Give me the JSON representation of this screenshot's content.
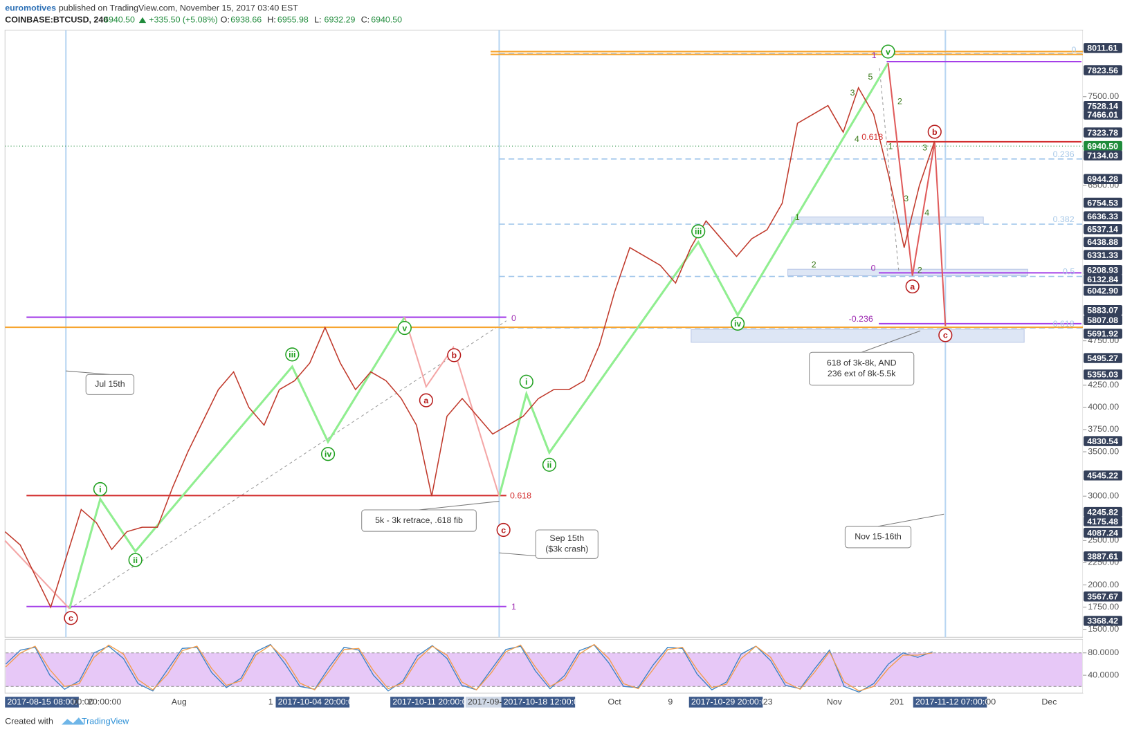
{
  "header": {
    "author": "euromotives",
    "published": "published on TradingView.com, November 15, 2017 03:40 EST",
    "symbol": "COINBASE:BTCUSD, 240",
    "last": "6940.50",
    "change": "+335.50 (+5.08%)",
    "ohlc": [
      {
        "label": "O:",
        "value": "6938.66"
      },
      {
        "label": "H:",
        "value": "6955.98"
      },
      {
        "label": "L:",
        "value": "6932.29"
      },
      {
        "label": "C:",
        "value": "6940.50"
      }
    ]
  },
  "chart_data": {
    "type": "line",
    "color": "#c0392b",
    "values": [
      2600,
      2450,
      2100,
      1750,
      2300,
      2850,
      2700,
      2400,
      2600,
      2650,
      2650,
      3100,
      3500,
      3850,
      4200,
      4400,
      4000,
      3800,
      4200,
      4300,
      4500,
      4900,
      4500,
      4200,
      4400,
      4300,
      4100,
      3800,
      3000,
      3900,
      4100,
      3900,
      3700,
      3800,
      3900,
      4100,
      4200,
      4200,
      4300,
      4700,
      5300,
      5800,
      5700,
      5600,
      5400,
      5800,
      6100,
      5900,
      5700,
      5900,
      6000,
      6300,
      7200,
      7300,
      7400,
      7100,
      7600,
      7300,
      6600,
      5800,
      6500,
      7000
    ],
    "ylim": [
      1410,
      8250
    ],
    "yticks": [
      {
        "value": 7500,
        "label": "7500.00"
      },
      {
        "value": 6500,
        "label": "6500.00"
      },
      {
        "value": 4750,
        "label": "4750.00"
      },
      {
        "value": 4250,
        "label": "4250.00"
      },
      {
        "value": 4000,
        "label": "4000.00"
      },
      {
        "value": 3750,
        "label": "3750.00"
      },
      {
        "value": 3500,
        "label": "3500.00"
      },
      {
        "value": 3000,
        "label": "3000.00"
      },
      {
        "value": 2500,
        "label": "2500.00"
      },
      {
        "value": 2250,
        "label": "2250.00"
      },
      {
        "value": 2000,
        "label": "2000.00"
      },
      {
        "value": 1750,
        "label": "1750.00"
      },
      {
        "value": 1500,
        "label": "1500.00"
      }
    ],
    "price_labels": [
      "8011.61",
      "7823.56",
      "7528.14",
      "7466.01",
      "7323.78",
      "6940.50",
      "7134.03",
      "6944.28",
      "6754.53",
      "6636.33",
      "6537.14",
      "6438.88",
      "6331.33",
      "6208.93",
      "6132.84",
      "6042.90",
      "5883.07",
      "5807.08",
      "5691.92",
      "5495.27",
      "5355.03",
      "4830.54",
      "4545.22",
      "4245.82",
      "4175.48",
      "4087.24",
      "3887.61",
      "3567.67",
      "3368.42"
    ],
    "label_color": "#34405a",
    "last_price_color": "#1f8b3b"
  },
  "oscillator": {
    "type": "line",
    "series": [
      {
        "color": "#3b82c4",
        "values": [
          60,
          85,
          90,
          40,
          15,
          30,
          80,
          92,
          70,
          25,
          12,
          50,
          88,
          90,
          45,
          18,
          35,
          82,
          95,
          60,
          20,
          15,
          55,
          90,
          85,
          40,
          12,
          30,
          75,
          93,
          70,
          22,
          14,
          50,
          86,
          92,
          48,
          16,
          40,
          84,
          94,
          62,
          20,
          18,
          58,
          90,
          88,
          42,
          14,
          28,
          78,
          92,
          66,
          22,
          16,
          52,
          85,
          20,
          10,
          25,
          60,
          80,
          72,
          82
        ]
      },
      {
        "color": "#f39c4a",
        "values": [
          55,
          80,
          92,
          50,
          20,
          25,
          72,
          94,
          78,
          32,
          14,
          42,
          84,
          92,
          52,
          22,
          30,
          76,
          94,
          68,
          26,
          14,
          48,
          86,
          88,
          48,
          16,
          26,
          68,
          92,
          76,
          28,
          14,
          44,
          82,
          94,
          55,
          20,
          34,
          78,
          95,
          70,
          25,
          16,
          50,
          86,
          90,
          50,
          18,
          24,
          70,
          92,
          72,
          28,
          15,
          46,
          82,
          28,
          12,
          20,
          52,
          76,
          76,
          80
        ]
      }
    ],
    "ylim": [
      8,
      104
    ],
    "yticks": [
      {
        "value": 80,
        "label": "80.0000"
      },
      {
        "value": 40,
        "label": "40.0000"
      }
    ],
    "bands": [
      20,
      80
    ],
    "band_color": "#e7c8f7"
  },
  "time_labels": [
    "2017-08-15 08:00:00",
    "00:00",
    "20:00:00",
    "Aug",
    "1",
    "2017-10-04 20:00:00",
    "2017-10-11 20:00:00",
    "2017-09-14",
    "2017-10-18 12:00:00",
    "Oct",
    "9",
    "2017-10-29 20:00:00",
    "23",
    "Nov",
    "201",
    "2017-11-12 07:00:00",
    ":00",
    "Dec"
  ],
  "green_waves": [
    "i",
    "ii",
    "iii",
    "iv",
    "v",
    "i",
    "ii",
    "iii",
    "iv",
    "v"
  ],
  "red_waves": [
    "c",
    "a",
    "b",
    "c",
    "a",
    "b",
    "c"
  ],
  "fib_labels": [
    {
      "text": "0",
      "color": "#9c27b0"
    },
    {
      "text": "1",
      "color": "#9c27b0"
    },
    {
      "text": "0.618",
      "color": "#d32f2f"
    },
    {
      "text": "1",
      "color": "#9c27b0"
    },
    {
      "text": "0.618",
      "color": "#d32f2f"
    },
    {
      "text": "0",
      "color": "#9c27b0"
    },
    {
      "text": "-0.236",
      "color": "#9c27b0"
    },
    {
      "text": "0",
      "color": "#a9c9e8"
    },
    {
      "text": "0.236",
      "color": "#a9c9e8"
    },
    {
      "text": "0.382",
      "color": "#a9c9e8"
    },
    {
      "text": "0.5",
      "color": "#a9c9e8"
    },
    {
      "text": "0.618",
      "color": "#a9c9e8"
    }
  ],
  "sub_waves": [
    "3",
    "5",
    "4",
    "2",
    "1",
    "3",
    "3",
    "4",
    "2",
    "1",
    "2"
  ],
  "callouts": [
    [
      "Jul 15th"
    ],
    [
      "5k - 3k retrace, .618 fib"
    ],
    [
      "Sep 15th",
      "($3k crash)"
    ],
    [
      "618 of 3k-8k, AND",
      "236 ext of 8k-5.5k"
    ],
    [
      "Nov 15-16th"
    ]
  ],
  "footer": {
    "created": "Created with",
    "brand": "TradingView"
  }
}
